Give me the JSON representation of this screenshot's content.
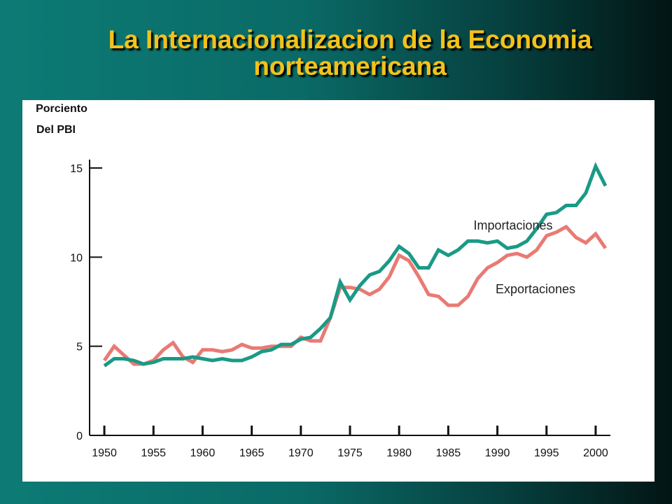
{
  "slide": {
    "title_line1": "La Internacionalizacion de la Economia",
    "title_line2": "norteamericana"
  },
  "colors": {
    "imports": "#1a9a86",
    "exports": "#e97a74",
    "title": "#f3c21a"
  },
  "chart_data": {
    "type": "line",
    "title": "La Internacionalizacion de la Economia norteamericana",
    "ylabel_line1": "Porciento",
    "ylabel_line2": "Del PBI",
    "xlabel": "",
    "xlim": [
      1950,
      2001
    ],
    "ylim": [
      0,
      15
    ],
    "yticks": [
      0,
      5,
      10,
      15
    ],
    "xticks": [
      1950,
      1955,
      1960,
      1965,
      1970,
      1975,
      1980,
      1985,
      1990,
      1995,
      2000
    ],
    "grid": false,
    "series": [
      {
        "name": "Importaciones",
        "x": [
          1950,
          1951,
          1952,
          1953,
          1954,
          1955,
          1956,
          1957,
          1958,
          1959,
          1960,
          1961,
          1962,
          1963,
          1964,
          1965,
          1966,
          1967,
          1968,
          1969,
          1970,
          1971,
          1972,
          1973,
          1974,
          1975,
          1976,
          1977,
          1978,
          1979,
          1980,
          1981,
          1982,
          1983,
          1984,
          1985,
          1986,
          1987,
          1988,
          1989,
          1990,
          1991,
          1992,
          1993,
          1994,
          1995,
          1996,
          1997,
          1998,
          1999,
          2000,
          2001
        ],
        "values": [
          3.9,
          4.3,
          4.3,
          4.2,
          4.0,
          4.1,
          4.3,
          4.3,
          4.3,
          4.4,
          4.3,
          4.2,
          4.3,
          4.2,
          4.2,
          4.4,
          4.7,
          4.8,
          5.1,
          5.1,
          5.4,
          5.5,
          6.0,
          6.6,
          8.6,
          7.6,
          8.4,
          9.0,
          9.2,
          9.8,
          10.6,
          10.2,
          9.4,
          9.4,
          10.4,
          10.1,
          10.4,
          10.9,
          10.9,
          10.8,
          10.9,
          10.5,
          10.6,
          10.9,
          11.6,
          12.4,
          12.5,
          12.9,
          12.9,
          13.6,
          15.1,
          14.0
        ]
      },
      {
        "name": "Exportaciones",
        "x": [
          1950,
          1951,
          1952,
          1953,
          1954,
          1955,
          1956,
          1957,
          1958,
          1959,
          1960,
          1961,
          1962,
          1963,
          1964,
          1965,
          1966,
          1967,
          1968,
          1969,
          1970,
          1971,
          1972,
          1973,
          1974,
          1975,
          1976,
          1977,
          1978,
          1979,
          1980,
          1981,
          1982,
          1983,
          1984,
          1985,
          1986,
          1987,
          1988,
          1989,
          1990,
          1991,
          1992,
          1993,
          1994,
          1995,
          1996,
          1997,
          1998,
          1999,
          2000,
          2001
        ],
        "values": [
          4.2,
          5.0,
          4.5,
          4.0,
          4.0,
          4.2,
          4.8,
          5.2,
          4.4,
          4.1,
          4.8,
          4.8,
          4.7,
          4.8,
          5.1,
          4.9,
          4.9,
          5.0,
          5.0,
          5.0,
          5.5,
          5.3,
          5.3,
          6.6,
          8.3,
          8.3,
          8.2,
          7.9,
          8.2,
          8.9,
          10.1,
          9.8,
          8.9,
          7.9,
          7.8,
          7.3,
          7.3,
          7.8,
          8.8,
          9.4,
          9.7,
          10.1,
          10.2,
          10.0,
          10.4,
          11.2,
          11.4,
          11.7,
          11.1,
          10.8,
          11.3,
          10.5
        ]
      }
    ]
  }
}
